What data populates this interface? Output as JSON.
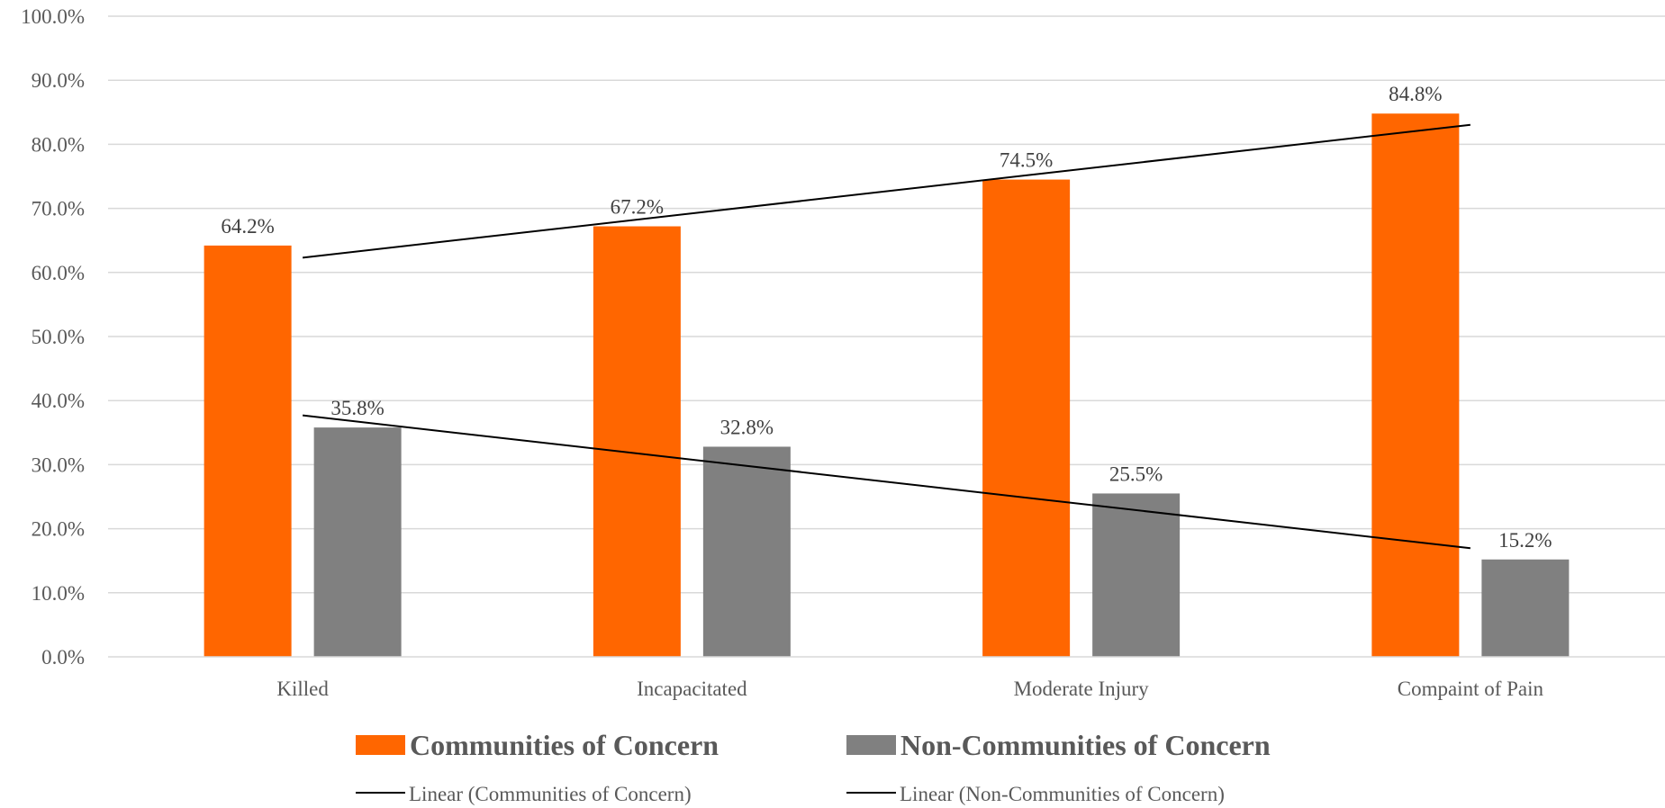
{
  "chart_data": {
    "type": "bar",
    "categories": [
      "Killed",
      "Incapacitated",
      "Moderate Injury",
      "Compaint of Pain"
    ],
    "series": [
      {
        "name": "Communities of Concern",
        "values": [
          64.2,
          67.2,
          74.5,
          84.8
        ],
        "color": "#FF6600",
        "labels": [
          "64.2%",
          "67.2%",
          "74.5%",
          "84.8%"
        ]
      },
      {
        "name": "Non-Communities of Concern",
        "values": [
          35.8,
          32.8,
          25.5,
          15.2
        ],
        "color": "#808080",
        "labels": [
          "35.8%",
          "32.8%",
          "25.5%",
          "15.2%"
        ]
      }
    ],
    "trendlines": [
      {
        "name": "Linear (Communities of Concern)",
        "series": 0,
        "color": "#000000"
      },
      {
        "name": "Linear (Non-Communities of Concern)",
        "series": 1,
        "color": "#000000"
      }
    ],
    "ylim": [
      0,
      100
    ],
    "yticks": [
      "0.0%",
      "10.0%",
      "20.0%",
      "30.0%",
      "40.0%",
      "50.0%",
      "60.0%",
      "70.0%",
      "80.0%",
      "90.0%",
      "100.0%"
    ],
    "grid": true,
    "legend_position": "bottom",
    "title": "",
    "xlabel": "",
    "ylabel": ""
  }
}
